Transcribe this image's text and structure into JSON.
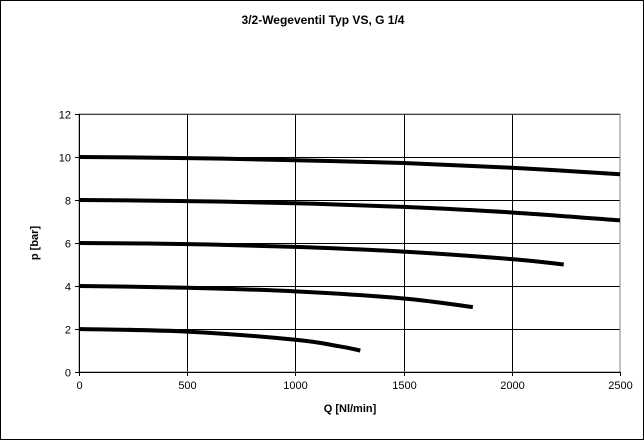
{
  "chart_data": {
    "type": "line",
    "title": "3/2-Wegeventil Typ VS, G 1/4",
    "xlabel": "Q [Nl/min]",
    "ylabel": "p [bar]",
    "xlim": [
      0,
      2500
    ],
    "ylim": [
      0,
      12
    ],
    "xticks": [
      "0",
      "500",
      "1000",
      "1500",
      "2000",
      "2500"
    ],
    "yticks": [
      "0",
      "2",
      "4",
      "6",
      "8",
      "10",
      "12"
    ],
    "grid": true,
    "legend": "none",
    "line_color": "#000000",
    "series": [
      {
        "x": [
          0,
          500,
          1000,
          1500,
          2000,
          2500
        ],
        "y": [
          10.0,
          9.95,
          9.85,
          9.72,
          9.5,
          9.2
        ]
      },
      {
        "x": [
          0,
          500,
          1000,
          1500,
          2000,
          2500
        ],
        "y": [
          8.0,
          7.95,
          7.85,
          7.68,
          7.42,
          7.05
        ]
      },
      {
        "x": [
          0,
          500,
          1000,
          1500,
          2000,
          2240
        ],
        "y": [
          6.0,
          5.95,
          5.82,
          5.6,
          5.25,
          5.0
        ]
      },
      {
        "x": [
          0,
          500,
          1000,
          1500,
          1820
        ],
        "y": [
          4.0,
          3.92,
          3.75,
          3.42,
          3.02
        ]
      },
      {
        "x": [
          0,
          500,
          1000,
          1200,
          1300
        ],
        "y": [
          2.0,
          1.88,
          1.5,
          1.2,
          1.0
        ]
      }
    ]
  }
}
